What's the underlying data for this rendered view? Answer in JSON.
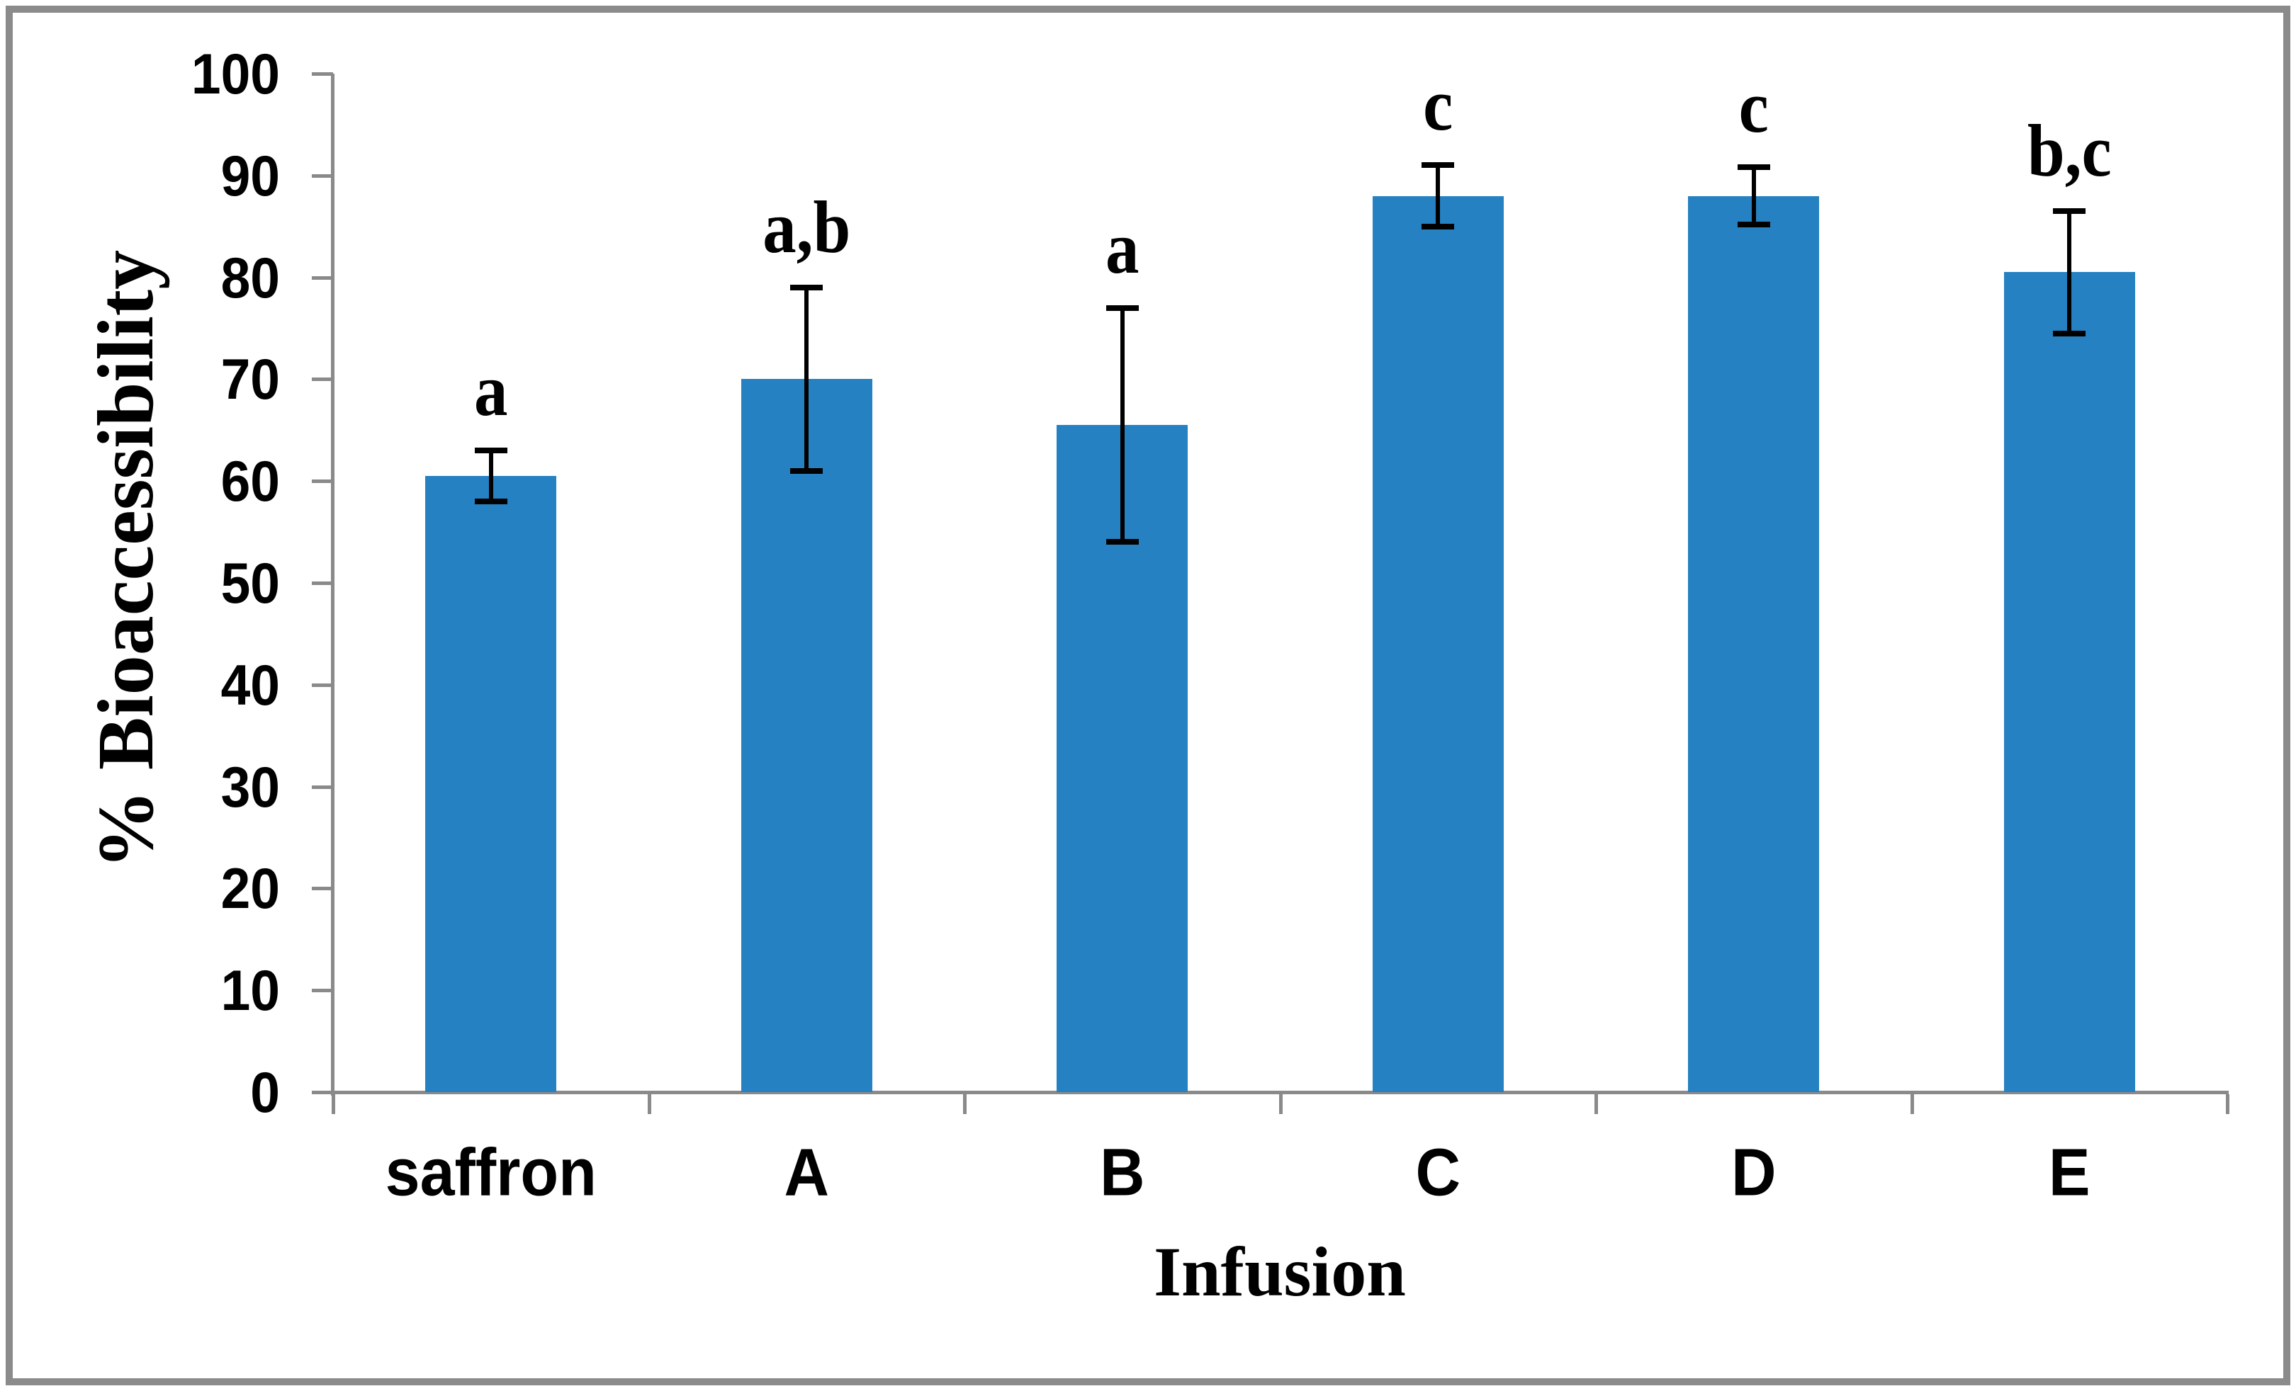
{
  "chart_data": {
    "type": "bar",
    "title": "",
    "xlabel": "Infusion",
    "ylabel": "% Bioaccessibility",
    "categories": [
      "saffron",
      "A",
      "B",
      "C",
      "D",
      "E"
    ],
    "values": [
      60.5,
      70.0,
      65.5,
      88.0,
      88.0,
      80.5
    ],
    "error_bars": [
      2.5,
      9.0,
      11.5,
      3.0,
      2.8,
      6.0
    ],
    "significance_labels": [
      "a",
      "a,b",
      "a",
      "c",
      "c",
      "b,c"
    ],
    "ylim": [
      0,
      100
    ],
    "yticks": [
      0,
      10,
      20,
      30,
      40,
      50,
      60,
      70,
      80,
      90,
      100
    ],
    "grid": false,
    "legend": false,
    "bar_color": "#2581c1",
    "axis_color": "#8a8a8a",
    "error_color": "#000000",
    "text_color": "#000000",
    "frame_color": "#8b8b8b"
  }
}
